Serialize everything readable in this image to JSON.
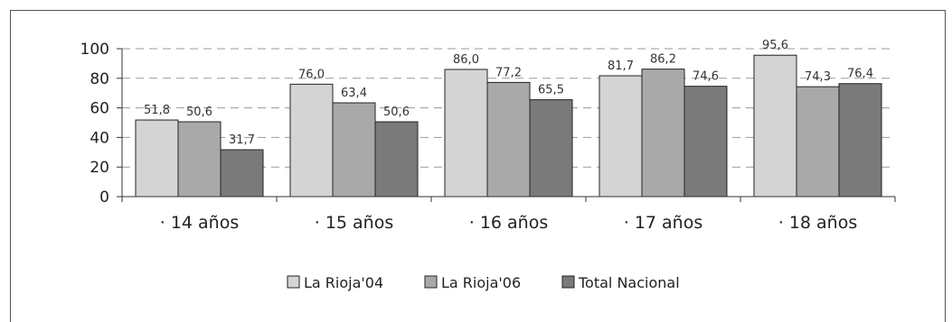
{
  "chart_data": {
    "type": "bar",
    "categories": [
      "· 14 años",
      "· 15 años",
      "· 16 años",
      "· 17 años",
      "· 18 años"
    ],
    "series": [
      {
        "name": "La Rioja'04",
        "values": [
          51.8,
          76.0,
          86.0,
          81.7,
          95.6
        ],
        "labels": [
          "51,8",
          "76,0",
          "86,0",
          "81,7",
          "95,6"
        ],
        "color": "#d4d4d4"
      },
      {
        "name": "La Rioja'06",
        "values": [
          50.6,
          63.4,
          77.2,
          86.2,
          74.3
        ],
        "labels": [
          "50,6",
          "63,4",
          "77,2",
          "86,2",
          "74,3"
        ],
        "color": "#a9a9a9"
      },
      {
        "name": "Total Nacional",
        "values": [
          31.7,
          50.6,
          65.5,
          74.6,
          76.4
        ],
        "labels": [
          "31,7",
          "50,6",
          "65,5",
          "74,6",
          "76,4"
        ],
        "color": "#7a7a7a"
      }
    ],
    "yticks": [
      "0",
      "20",
      "40",
      "60",
      "80",
      "100"
    ],
    "ylim": [
      0,
      100
    ],
    "grid": true,
    "legend_position": "bottom"
  }
}
